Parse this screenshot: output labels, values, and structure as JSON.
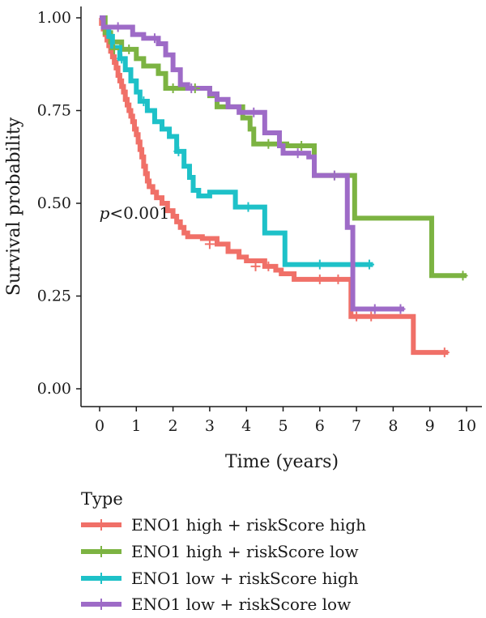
{
  "chart_data": {
    "type": "line",
    "subtype": "kaplan-meier",
    "xlabel": "Time (years)",
    "ylabel": "Survival probability",
    "xlim": [
      0,
      10
    ],
    "ylim": [
      0,
      1
    ],
    "x_ticks": [
      0,
      1,
      2,
      3,
      4,
      5,
      6,
      7,
      8,
      9,
      10
    ],
    "y_ticks": [
      "0.00",
      "0.25",
      "0.50",
      "0.75",
      "1.00"
    ],
    "annotation": {
      "prefix": "p",
      "text": "<0.001",
      "x": 0.3,
      "y": 0.45
    },
    "legend": {
      "title": "Type",
      "position": "bottom-left"
    },
    "grid": false,
    "series": [
      {
        "name": "ENO1 high + riskScore high",
        "color": "#F07068",
        "steps": [
          [
            0,
            1.0
          ],
          [
            0.05,
            0.985
          ],
          [
            0.1,
            0.97
          ],
          [
            0.15,
            0.955
          ],
          [
            0.2,
            0.94
          ],
          [
            0.25,
            0.925
          ],
          [
            0.3,
            0.91
          ],
          [
            0.35,
            0.895
          ],
          [
            0.4,
            0.88
          ],
          [
            0.45,
            0.865
          ],
          [
            0.5,
            0.845
          ],
          [
            0.55,
            0.83
          ],
          [
            0.6,
            0.815
          ],
          [
            0.65,
            0.8
          ],
          [
            0.7,
            0.78
          ],
          [
            0.75,
            0.765
          ],
          [
            0.8,
            0.75
          ],
          [
            0.85,
            0.735
          ],
          [
            0.9,
            0.72
          ],
          [
            0.95,
            0.7
          ],
          [
            1.0,
            0.685
          ],
          [
            1.05,
            0.665
          ],
          [
            1.1,
            0.645
          ],
          [
            1.15,
            0.625
          ],
          [
            1.2,
            0.6
          ],
          [
            1.25,
            0.58
          ],
          [
            1.3,
            0.56
          ],
          [
            1.35,
            0.545
          ],
          [
            1.45,
            0.53
          ],
          [
            1.55,
            0.515
          ],
          [
            1.7,
            0.5
          ],
          [
            1.85,
            0.48
          ],
          [
            2.0,
            0.465
          ],
          [
            2.1,
            0.45
          ],
          [
            2.2,
            0.435
          ],
          [
            2.3,
            0.42
          ],
          [
            2.4,
            0.41
          ],
          [
            2.8,
            0.405
          ],
          [
            3.2,
            0.39
          ],
          [
            3.5,
            0.37
          ],
          [
            3.8,
            0.355
          ],
          [
            4.0,
            0.345
          ],
          [
            4.5,
            0.33
          ],
          [
            4.8,
            0.32
          ],
          [
            4.95,
            0.31
          ],
          [
            5.3,
            0.295
          ],
          [
            5.8,
            0.295
          ],
          [
            6.8,
            0.295
          ],
          [
            6.85,
            0.195
          ],
          [
            7.5,
            0.195
          ],
          [
            8.4,
            0.195
          ],
          [
            8.55,
            0.098
          ],
          [
            9.5,
            0.098
          ]
        ],
        "censors": [
          [
            3.0,
            0.39
          ],
          [
            4.25,
            0.33
          ],
          [
            4.6,
            0.33
          ],
          [
            6.0,
            0.295
          ],
          [
            6.5,
            0.295
          ],
          [
            7.0,
            0.195
          ],
          [
            7.4,
            0.195
          ],
          [
            9.4,
            0.098
          ]
        ]
      },
      {
        "name": "ENO1 high + riskScore low",
        "color": "#7CB342",
        "steps": [
          [
            0,
            1.0
          ],
          [
            0.15,
            0.96
          ],
          [
            0.3,
            0.935
          ],
          [
            0.6,
            0.915
          ],
          [
            1.0,
            0.89
          ],
          [
            1.2,
            0.87
          ],
          [
            1.6,
            0.85
          ],
          [
            1.8,
            0.81
          ],
          [
            2.2,
            0.81
          ],
          [
            2.8,
            0.81
          ],
          [
            3.0,
            0.79
          ],
          [
            3.2,
            0.76
          ],
          [
            3.9,
            0.73
          ],
          [
            4.1,
            0.7
          ],
          [
            4.2,
            0.66
          ],
          [
            5.1,
            0.655
          ],
          [
            5.8,
            0.655
          ],
          [
            5.85,
            0.575
          ],
          [
            6.85,
            0.575
          ],
          [
            6.95,
            0.46
          ],
          [
            7.8,
            0.46
          ],
          [
            9.0,
            0.46
          ],
          [
            9.05,
            0.305
          ],
          [
            10.0,
            0.305
          ]
        ],
        "censors": [
          [
            0.4,
            0.915
          ],
          [
            0.8,
            0.915
          ],
          [
            2.0,
            0.81
          ],
          [
            2.6,
            0.81
          ],
          [
            4.6,
            0.66
          ],
          [
            5.5,
            0.655
          ],
          [
            6.4,
            0.575
          ],
          [
            9.9,
            0.305
          ]
        ]
      },
      {
        "name": "ENO1 low + riskScore high",
        "color": "#1EC1C8",
        "steps": [
          [
            0,
            1.0
          ],
          [
            0.1,
            0.975
          ],
          [
            0.25,
            0.95
          ],
          [
            0.35,
            0.92
          ],
          [
            0.55,
            0.89
          ],
          [
            0.7,
            0.86
          ],
          [
            0.85,
            0.83
          ],
          [
            1.0,
            0.8
          ],
          [
            1.1,
            0.775
          ],
          [
            1.3,
            0.75
          ],
          [
            1.5,
            0.72
          ],
          [
            1.7,
            0.7
          ],
          [
            1.9,
            0.68
          ],
          [
            2.1,
            0.64
          ],
          [
            2.3,
            0.6
          ],
          [
            2.45,
            0.57
          ],
          [
            2.55,
            0.535
          ],
          [
            2.7,
            0.52
          ],
          [
            3.0,
            0.53
          ],
          [
            3.6,
            0.53
          ],
          [
            3.7,
            0.49
          ],
          [
            4.4,
            0.49
          ],
          [
            4.5,
            0.42
          ],
          [
            5.0,
            0.42
          ],
          [
            5.05,
            0.335
          ],
          [
            7.45,
            0.335
          ]
        ],
        "censors": [
          [
            0.6,
            0.89
          ],
          [
            1.2,
            0.775
          ],
          [
            2.15,
            0.64
          ],
          [
            4.05,
            0.49
          ],
          [
            6.0,
            0.335
          ],
          [
            7.35,
            0.335
          ]
        ]
      },
      {
        "name": "ENO1 low + riskScore low",
        "color": "#9E6BC7",
        "steps": [
          [
            0,
            1.0
          ],
          [
            0.1,
            0.975
          ],
          [
            0.5,
            0.975
          ],
          [
            0.9,
            0.955
          ],
          [
            1.2,
            0.945
          ],
          [
            1.6,
            0.93
          ],
          [
            1.8,
            0.9
          ],
          [
            2.0,
            0.86
          ],
          [
            2.2,
            0.82
          ],
          [
            2.4,
            0.81
          ],
          [
            2.6,
            0.81
          ],
          [
            3.0,
            0.795
          ],
          [
            3.2,
            0.78
          ],
          [
            3.5,
            0.76
          ],
          [
            3.8,
            0.745
          ],
          [
            4.4,
            0.745
          ],
          [
            4.5,
            0.69
          ],
          [
            4.9,
            0.655
          ],
          [
            5.0,
            0.635
          ],
          [
            5.7,
            0.625
          ],
          [
            5.85,
            0.575
          ],
          [
            6.7,
            0.575
          ],
          [
            6.75,
            0.435
          ],
          [
            6.85,
            0.435
          ],
          [
            6.9,
            0.215
          ],
          [
            8.3,
            0.215
          ]
        ],
        "censors": [
          [
            0.5,
            0.975
          ],
          [
            1.5,
            0.945
          ],
          [
            2.5,
            0.81
          ],
          [
            4.2,
            0.745
          ],
          [
            5.4,
            0.635
          ],
          [
            6.4,
            0.575
          ],
          [
            7.5,
            0.215
          ],
          [
            8.2,
            0.215
          ]
        ]
      }
    ]
  }
}
